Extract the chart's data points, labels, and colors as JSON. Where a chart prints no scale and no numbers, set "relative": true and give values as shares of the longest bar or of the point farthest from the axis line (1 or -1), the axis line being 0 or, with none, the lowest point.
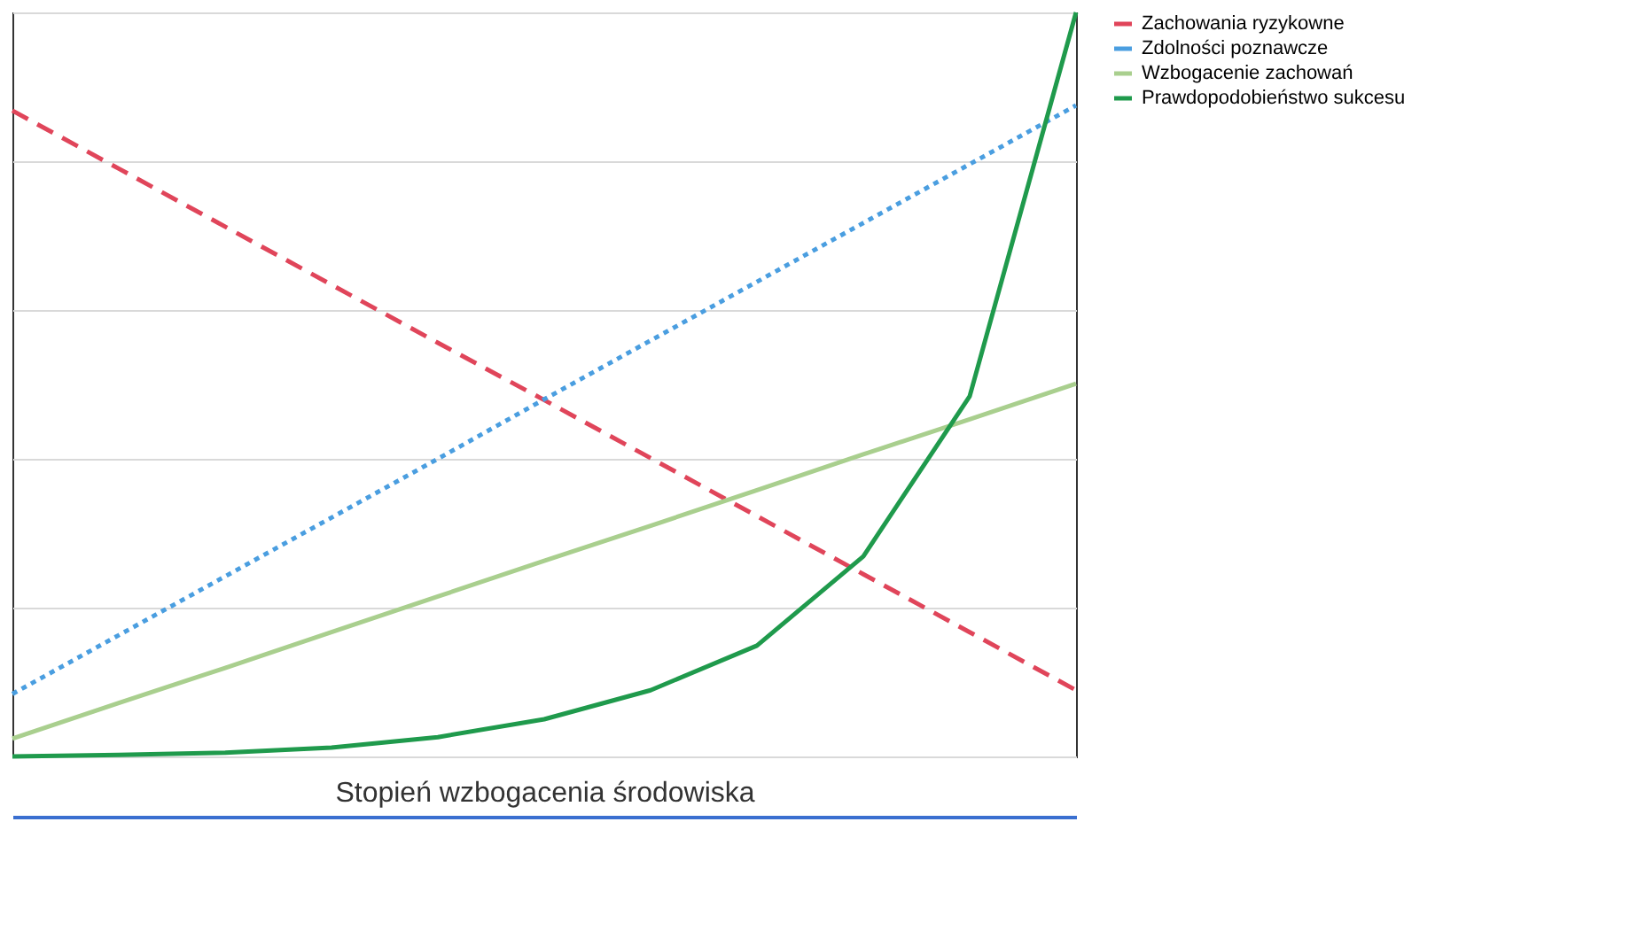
{
  "chart_data": {
    "type": "line",
    "relative": true,
    "xlabel": "Stopień wzbogacenia środowiska",
    "categories": [
      null,
      null,
      null,
      null,
      null,
      null,
      null,
      null,
      null,
      null,
      null
    ],
    "series": [
      {
        "name": "Zachowania ryzykowne",
        "color": "#e0455a",
        "line_style": "dashed",
        "values": [
          0.868,
          0.79,
          0.712,
          0.634,
          0.556,
          0.479,
          0.401,
          0.323,
          0.245,
          0.167,
          0.089
        ]
      },
      {
        "name": "Zdolności poznawcze",
        "color": "#4a9ee0",
        "line_style": "dotted",
        "values": [
          0.084,
          0.163,
          0.242,
          0.321,
          0.4,
          0.48,
          0.559,
          0.638,
          0.717,
          0.796,
          0.875
        ]
      },
      {
        "name": "Wzbogacenie zachowań",
        "color": "#a9cf8e",
        "line_style": "solid",
        "values": [
          0.024,
          0.072,
          0.119,
          0.167,
          0.215,
          0.263,
          0.31,
          0.358,
          0.406,
          0.453,
          0.501
        ]
      },
      {
        "name": "Prawdopodobieństwo sukcesu",
        "color": "#1f9a4c",
        "line_style": "solid",
        "values": [
          0.0,
          0.002,
          0.005,
          0.012,
          0.026,
          0.05,
          0.089,
          0.149,
          0.269,
          0.484,
          1.0
        ]
      }
    ],
    "grid": "y",
    "legend": "right",
    "marker": "none"
  }
}
